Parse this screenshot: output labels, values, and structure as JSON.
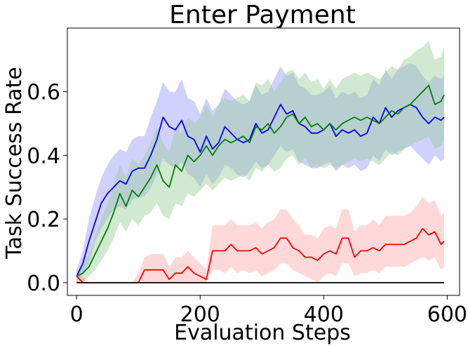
{
  "chart_data": {
    "type": "line",
    "title": "Enter Payment",
    "xlabel": "Evaluation Steps",
    "ylabel": "Task Success Rate",
    "xlim": [
      -15,
      620
    ],
    "ylim": [
      -0.04,
      0.8
    ],
    "xticks": [
      "0",
      "200",
      "400",
      "600"
    ],
    "yticks": [
      "0.0",
      "0.2",
      "0.4",
      "0.6"
    ],
    "grid": false,
    "legend": "none",
    "series": [
      {
        "color": "#0000ff",
        "band_color": "#9999ff",
        "x": [
          0,
          10,
          20,
          30,
          40,
          50,
          60,
          70,
          80,
          90,
          100,
          110,
          120,
          130,
          140,
          150,
          160,
          170,
          180,
          190,
          200,
          210,
          220,
          230,
          240,
          250,
          260,
          270,
          280,
          290,
          300,
          310,
          320,
          330,
          340,
          350,
          360,
          370,
          380,
          390,
          400,
          410,
          420,
          430,
          440,
          450,
          460,
          470,
          480,
          490,
          500,
          510,
          520,
          530,
          540,
          550,
          560,
          570,
          580,
          590,
          595
        ],
        "y": [
          0.02,
          0.06,
          0.13,
          0.19,
          0.25,
          0.28,
          0.3,
          0.32,
          0.31,
          0.35,
          0.36,
          0.36,
          0.4,
          0.45,
          0.52,
          0.49,
          0.48,
          0.51,
          0.46,
          0.45,
          0.41,
          0.46,
          0.42,
          0.44,
          0.49,
          0.47,
          0.45,
          0.44,
          0.45,
          0.5,
          0.47,
          0.48,
          0.52,
          0.56,
          0.53,
          0.54,
          0.5,
          0.49,
          0.47,
          0.47,
          0.48,
          0.5,
          0.46,
          0.48,
          0.47,
          0.48,
          0.46,
          0.47,
          0.52,
          0.5,
          0.55,
          0.52,
          0.54,
          0.55,
          0.56,
          0.55,
          0.52,
          0.5,
          0.52,
          0.51,
          0.52
        ],
        "lower": [
          0.0,
          0.03,
          0.06,
          0.13,
          0.17,
          0.2,
          0.23,
          0.24,
          0.23,
          0.26,
          0.27,
          0.27,
          0.3,
          0.34,
          0.39,
          0.37,
          0.36,
          0.38,
          0.34,
          0.33,
          0.3,
          0.34,
          0.31,
          0.33,
          0.37,
          0.36,
          0.34,
          0.33,
          0.35,
          0.38,
          0.36,
          0.37,
          0.4,
          0.43,
          0.41,
          0.42,
          0.38,
          0.37,
          0.36,
          0.36,
          0.37,
          0.38,
          0.35,
          0.37,
          0.36,
          0.37,
          0.35,
          0.36,
          0.4,
          0.38,
          0.42,
          0.4,
          0.41,
          0.42,
          0.43,
          0.41,
          0.39,
          0.37,
          0.4,
          0.38,
          0.39
        ],
        "upper": [
          0.04,
          0.1,
          0.2,
          0.27,
          0.33,
          0.37,
          0.4,
          0.42,
          0.41,
          0.45,
          0.46,
          0.46,
          0.52,
          0.57,
          0.63,
          0.6,
          0.6,
          0.64,
          0.58,
          0.57,
          0.53,
          0.58,
          0.54,
          0.56,
          0.61,
          0.59,
          0.57,
          0.56,
          0.57,
          0.62,
          0.59,
          0.6,
          0.64,
          0.68,
          0.65,
          0.66,
          0.62,
          0.61,
          0.59,
          0.59,
          0.6,
          0.62,
          0.58,
          0.6,
          0.59,
          0.6,
          0.58,
          0.59,
          0.64,
          0.62,
          0.67,
          0.64,
          0.67,
          0.68,
          0.69,
          0.68,
          0.65,
          0.63,
          0.65,
          0.64,
          0.65
        ]
      },
      {
        "color": "#008000",
        "band_color": "#98cc98",
        "x": [
          0,
          10,
          20,
          30,
          40,
          50,
          60,
          70,
          80,
          90,
          100,
          110,
          120,
          130,
          140,
          150,
          160,
          170,
          180,
          190,
          200,
          210,
          220,
          230,
          240,
          250,
          260,
          270,
          280,
          290,
          300,
          310,
          320,
          330,
          340,
          350,
          360,
          370,
          380,
          390,
          400,
          410,
          420,
          430,
          440,
          450,
          460,
          470,
          480,
          490,
          500,
          510,
          520,
          530,
          540,
          550,
          560,
          570,
          580,
          590,
          595
        ],
        "y": [
          0.02,
          0.03,
          0.05,
          0.09,
          0.13,
          0.17,
          0.22,
          0.28,
          0.24,
          0.29,
          0.27,
          0.3,
          0.33,
          0.37,
          0.32,
          0.3,
          0.37,
          0.35,
          0.4,
          0.38,
          0.4,
          0.43,
          0.4,
          0.43,
          0.45,
          0.44,
          0.45,
          0.46,
          0.44,
          0.49,
          0.48,
          0.5,
          0.47,
          0.49,
          0.52,
          0.53,
          0.5,
          0.52,
          0.49,
          0.5,
          0.48,
          0.5,
          0.48,
          0.5,
          0.51,
          0.52,
          0.51,
          0.52,
          0.51,
          0.5,
          0.52,
          0.54,
          0.53,
          0.55,
          0.56,
          0.58,
          0.6,
          0.62,
          0.56,
          0.57,
          0.59
        ],
        "lower": [
          0.0,
          0.0,
          0.02,
          0.04,
          0.07,
          0.1,
          0.14,
          0.19,
          0.16,
          0.2,
          0.18,
          0.21,
          0.22,
          0.25,
          0.21,
          0.2,
          0.25,
          0.24,
          0.28,
          0.27,
          0.29,
          0.31,
          0.29,
          0.31,
          0.33,
          0.32,
          0.33,
          0.34,
          0.32,
          0.36,
          0.35,
          0.37,
          0.35,
          0.36,
          0.39,
          0.4,
          0.37,
          0.39,
          0.36,
          0.37,
          0.36,
          0.37,
          0.36,
          0.37,
          0.38,
          0.39,
          0.38,
          0.39,
          0.38,
          0.37,
          0.39,
          0.41,
          0.4,
          0.42,
          0.43,
          0.44,
          0.45,
          0.46,
          0.42,
          0.43,
          0.45
        ],
        "upper": [
          0.04,
          0.06,
          0.09,
          0.15,
          0.2,
          0.25,
          0.31,
          0.37,
          0.33,
          0.39,
          0.37,
          0.4,
          0.44,
          0.49,
          0.44,
          0.41,
          0.49,
          0.47,
          0.52,
          0.5,
          0.52,
          0.56,
          0.52,
          0.56,
          0.58,
          0.57,
          0.58,
          0.59,
          0.57,
          0.63,
          0.62,
          0.64,
          0.6,
          0.63,
          0.66,
          0.67,
          0.64,
          0.66,
          0.63,
          0.64,
          0.61,
          0.64,
          0.61,
          0.64,
          0.65,
          0.66,
          0.65,
          0.66,
          0.65,
          0.64,
          0.66,
          0.68,
          0.67,
          0.7,
          0.71,
          0.73,
          0.74,
          0.76,
          0.7,
          0.71,
          0.74
        ]
      },
      {
        "color": "#ff0000",
        "band_color": "#ffaaaa",
        "x": [
          0,
          10,
          20,
          30,
          40,
          50,
          60,
          70,
          80,
          90,
          100,
          110,
          120,
          130,
          140,
          150,
          160,
          170,
          180,
          190,
          200,
          210,
          220,
          230,
          240,
          250,
          260,
          270,
          280,
          290,
          300,
          310,
          320,
          330,
          340,
          350,
          360,
          370,
          380,
          390,
          400,
          410,
          420,
          430,
          440,
          450,
          460,
          470,
          480,
          490,
          500,
          510,
          520,
          530,
          540,
          550,
          560,
          570,
          580,
          590,
          595
        ],
        "y": [
          0.02,
          0.0,
          0.0,
          0.0,
          0.0,
          0.0,
          0.0,
          0.0,
          0.0,
          0.0,
          0.0,
          0.04,
          0.04,
          0.04,
          0.04,
          0.01,
          0.03,
          0.03,
          0.05,
          0.03,
          0.02,
          0.01,
          0.1,
          0.1,
          0.1,
          0.12,
          0.1,
          0.1,
          0.1,
          0.11,
          0.09,
          0.1,
          0.11,
          0.14,
          0.14,
          0.11,
          0.1,
          0.08,
          0.08,
          0.07,
          0.09,
          0.1,
          0.09,
          0.14,
          0.14,
          0.08,
          0.1,
          0.1,
          0.11,
          0.1,
          0.12,
          0.12,
          0.12,
          0.12,
          0.13,
          0.14,
          0.17,
          0.15,
          0.16,
          0.12,
          0.13
        ],
        "lower": [
          0.0,
          0.0,
          0.0,
          0.0,
          0.0,
          0.0,
          0.0,
          0.0,
          0.0,
          0.0,
          0.0,
          0.0,
          0.0,
          0.0,
          0.0,
          0.0,
          0.0,
          0.0,
          0.0,
          0.0,
          0.0,
          0.0,
          0.04,
          0.04,
          0.03,
          0.05,
          0.03,
          0.04,
          0.03,
          0.04,
          0.02,
          0.03,
          0.04,
          0.06,
          0.06,
          0.04,
          0.03,
          0.02,
          0.01,
          0.0,
          0.02,
          0.03,
          0.02,
          0.06,
          0.06,
          0.02,
          0.03,
          0.03,
          0.04,
          0.03,
          0.05,
          0.05,
          0.05,
          0.05,
          0.06,
          0.07,
          0.08,
          0.07,
          0.08,
          0.04,
          0.05
        ],
        "upper": [
          0.04,
          0.02,
          0.0,
          0.0,
          0.0,
          0.0,
          0.0,
          0.0,
          0.0,
          0.0,
          0.03,
          0.08,
          0.09,
          0.09,
          0.09,
          0.05,
          0.08,
          0.08,
          0.1,
          0.08,
          0.06,
          0.04,
          0.18,
          0.18,
          0.18,
          0.2,
          0.18,
          0.18,
          0.18,
          0.19,
          0.17,
          0.19,
          0.2,
          0.23,
          0.23,
          0.2,
          0.18,
          0.15,
          0.15,
          0.14,
          0.17,
          0.18,
          0.17,
          0.23,
          0.23,
          0.16,
          0.18,
          0.18,
          0.2,
          0.18,
          0.21,
          0.21,
          0.21,
          0.21,
          0.22,
          0.24,
          0.27,
          0.25,
          0.26,
          0.21,
          0.22
        ]
      },
      {
        "color": "#000000",
        "x": [
          0,
          595
        ],
        "y": [
          0.0,
          0.0
        ]
      }
    ]
  }
}
